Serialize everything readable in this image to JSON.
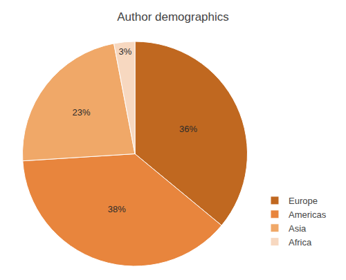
{
  "chart_data": {
    "type": "pie",
    "title": "Author demographics",
    "categories": [
      "Europe",
      "Americas",
      "Asia",
      "Africa"
    ],
    "values": [
      36,
      38,
      23,
      3
    ],
    "value_labels": [
      "36%",
      "38%",
      "23%",
      "3%"
    ],
    "colors": [
      "#c06820",
      "#e8853d",
      "#f0a868",
      "#f7d8c0"
    ],
    "data_labels": true,
    "legend": "lower right"
  }
}
